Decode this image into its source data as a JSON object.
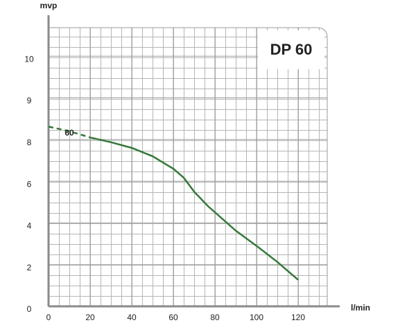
{
  "chart_data": {
    "type": "line",
    "title": "DP 60",
    "y_label": "mvp",
    "x_label": "l/min",
    "scale": "tick-spaced",
    "xlim": [
      0,
      134
    ],
    "ylim": [
      0,
      10.75
    ],
    "xticks": [
      0,
      20,
      40,
      60,
      80,
      100,
      120
    ],
    "yticks": [
      0,
      2,
      4,
      6,
      8,
      9,
      10
    ],
    "grid": true,
    "dash_range": [
      0,
      20
    ],
    "series": [
      {
        "name": "60",
        "color": "#2e7d32",
        "x": [
          0,
          10,
          20,
          30,
          40,
          50,
          60,
          65,
          70,
          76.7,
          90,
          100,
          110,
          120
        ],
        "values": [
          8.31,
          8.2,
          8.05,
          7.87,
          7.6,
          7.2,
          6.6,
          6.17,
          5.5,
          4.8,
          3.63,
          2.9,
          2.13,
          1.27
        ]
      }
    ]
  }
}
